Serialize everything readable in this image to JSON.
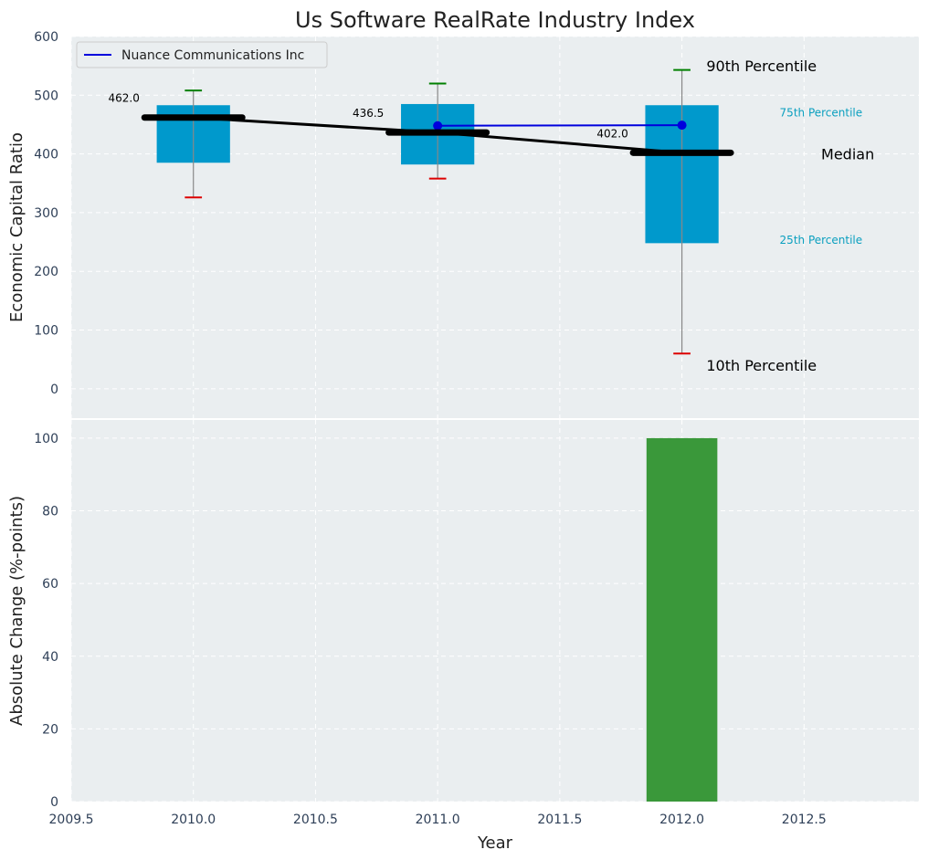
{
  "title": "Us Software RealRate Industry Index",
  "xlabel": "Year",
  "colors": {
    "panel_bg": "#eaeef0",
    "box": "#0099cc",
    "median": "#000000",
    "company": "#0000dd",
    "p90_cap": "#008000",
    "p10_cap": "#dd0000",
    "bar": "#3a983a",
    "ann_blue": "#0a9fbf"
  },
  "chart_data": [
    {
      "type": "box",
      "ylabel": "Economic Capital Ratio",
      "ylim": [
        -50,
        600
      ],
      "yticks": [
        0,
        100,
        200,
        300,
        400,
        500,
        600
      ],
      "xlim": [
        2009.5,
        2012.97
      ],
      "xticks": [
        "2009.5",
        "2010.0",
        "2010.5",
        "2011.0",
        "2011.5",
        "2012.0",
        "2012.5"
      ],
      "grid": true,
      "legend": {
        "position": "top-left",
        "entries": [
          "Nuance Communications Inc"
        ]
      },
      "years": [
        2010,
        2011,
        2012
      ],
      "p10": [
        326,
        358,
        60
      ],
      "p25": [
        385,
        382,
        248
      ],
      "median": [
        462.0,
        436.5,
        402.0
      ],
      "median_labels": [
        "462.0",
        "436.5",
        "402.0"
      ],
      "p75": [
        483,
        485,
        483
      ],
      "p90": [
        508,
        520,
        543
      ],
      "series": [
        {
          "name": "Nuance Communications Inc",
          "x": [
            2011,
            2012
          ],
          "values": [
            448,
            449
          ]
        }
      ],
      "annotations": [
        {
          "text": "90th Percentile",
          "x": 2012.1,
          "y": 550,
          "style": "large"
        },
        {
          "text": "75th Percentile",
          "x": 2012.4,
          "y": 470,
          "style": "small-blue"
        },
        {
          "text": "Median",
          "x": 2012.57,
          "y": 400,
          "style": "large"
        },
        {
          "text": "25th Percentile",
          "x": 2012.4,
          "y": 253,
          "style": "small-blue"
        },
        {
          "text": "10th Percentile",
          "x": 2012.1,
          "y": 40,
          "style": "large"
        }
      ]
    },
    {
      "type": "bar",
      "ylabel": "Absolute Change (%-points)",
      "ylim": [
        0,
        105
      ],
      "yticks": [
        0,
        20,
        40,
        60,
        80,
        100
      ],
      "grid": true,
      "x": [
        2012
      ],
      "values": [
        100
      ]
    }
  ]
}
